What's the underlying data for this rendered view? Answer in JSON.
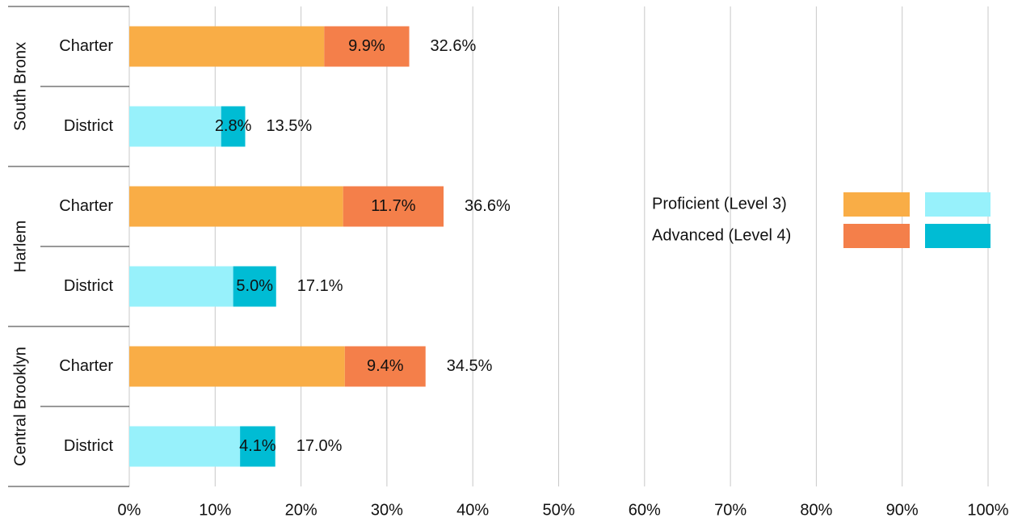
{
  "chart_data": {
    "type": "stacked_barh",
    "groups": [
      "South Bronx",
      "Harlem",
      "Central Brooklyn"
    ],
    "categories": [
      "Charter",
      "District",
      "Charter",
      "District",
      "Charter",
      "District"
    ],
    "series": [
      {
        "name": "Proficient (Level 3)",
        "colors": [
          "#f9ad46",
          "#97f1fb",
          "#f9ad46",
          "#97f1fb",
          "#f9ad46",
          "#97f1fb"
        ],
        "values": [
          22.7,
          10.7,
          24.9,
          12.1,
          25.1,
          12.9
        ]
      },
      {
        "name": "Advanced (Level 4)",
        "colors": [
          "#f47f4a",
          "#00bcd4",
          "#f47f4a",
          "#00bcd4",
          "#f47f4a",
          "#00bcd4"
        ],
        "values": [
          9.9,
          2.8,
          11.7,
          5.0,
          9.4,
          4.1
        ],
        "value_labels": [
          "9.9%",
          "2.8%",
          "11.7%",
          "5.0%",
          "9.4%",
          "4.1%"
        ]
      }
    ],
    "total_labels": [
      "32.6%",
      "13.5%",
      "36.6%",
      "17.1%",
      "34.5%",
      "17.0%"
    ],
    "xlim": [
      0,
      100
    ],
    "xticks": [
      {
        "value": 0,
        "label": "0%"
      },
      {
        "value": 10,
        "label": "10%"
      },
      {
        "value": 20,
        "label": "20%"
      },
      {
        "value": 30,
        "label": "30%"
      },
      {
        "value": 40,
        "label": "40%"
      },
      {
        "value": 50,
        "label": "50%"
      },
      {
        "value": 60,
        "label": "60%"
      },
      {
        "value": 70,
        "label": "70%"
      },
      {
        "value": 80,
        "label": "80%"
      },
      {
        "value": 90,
        "label": "90%"
      },
      {
        "value": 100,
        "label": "100%"
      }
    ],
    "grid": true
  }
}
